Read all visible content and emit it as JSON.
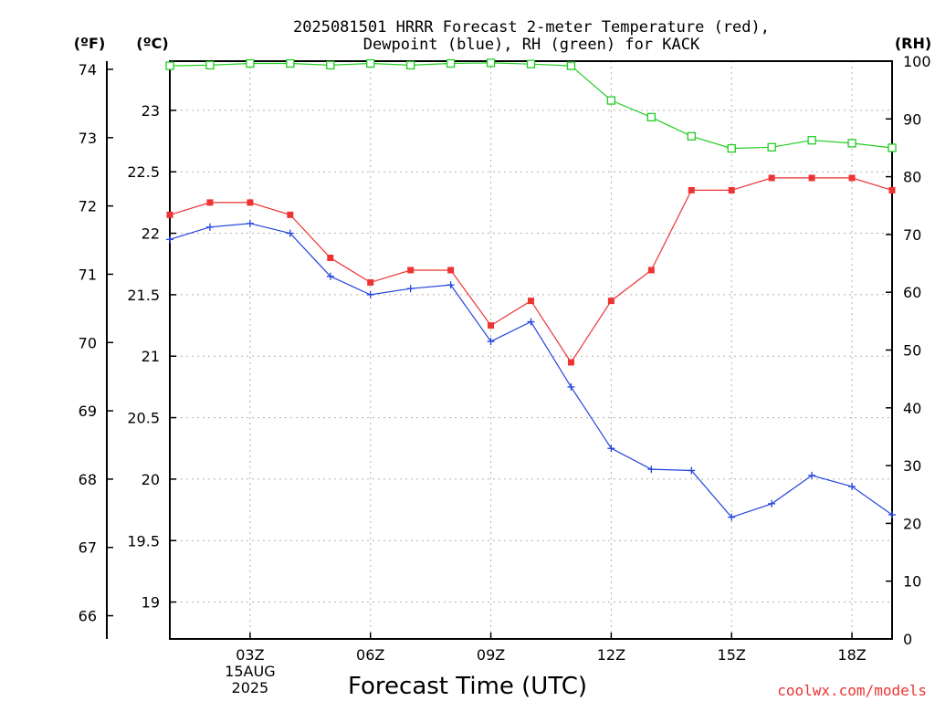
{
  "chart_data": {
    "type": "line",
    "title_lines": [
      "2025081501 HRRR Forecast 2-meter Temperature (red),",
      "Dewpoint (blue), RH (green) for KACK"
    ],
    "xlabel": "Forecast Time (UTC)",
    "unit_labels": {
      "fahrenheit": "(ºF)",
      "celsius": "(ºC)",
      "rh": "(RH)"
    },
    "credit": "coolwx.com/models",
    "x_hours": [
      1,
      2,
      3,
      4,
      5,
      6,
      7,
      8,
      9,
      10,
      11,
      12,
      13,
      14,
      15,
      16,
      17,
      18,
      19
    ],
    "x_range": [
      1,
      19
    ],
    "x_ticks": [
      {
        "hour": 3,
        "label": "03Z",
        "sub": [
          "15AUG",
          "2025"
        ]
      },
      {
        "hour": 6,
        "label": "06Z",
        "sub": []
      },
      {
        "hour": 9,
        "label": "09Z",
        "sub": []
      },
      {
        "hour": 12,
        "label": "12Z",
        "sub": []
      },
      {
        "hour": 15,
        "label": "15Z",
        "sub": []
      },
      {
        "hour": 18,
        "label": "18Z",
        "sub": []
      }
    ],
    "celsius_range": [
      18.7,
      23.4
    ],
    "fahrenheit_ticks": [
      "66",
      "67",
      "68",
      "69",
      "70",
      "71",
      "72",
      "73",
      "74"
    ],
    "celsius_ticks": [
      "19",
      "19.5",
      "20",
      "20.5",
      "21",
      "21.5",
      "22",
      "22.5",
      "23"
    ],
    "rh_range": [
      0,
      100
    ],
    "rh_ticks": [
      "0",
      "10",
      "20",
      "30",
      "40",
      "50",
      "60",
      "70",
      "80",
      "90",
      "100"
    ],
    "grid": true,
    "colors": {
      "temperature": "#ee3333",
      "dewpoint": "#2244dd",
      "rh": "#22cc22"
    },
    "series": [
      {
        "name": "Temperature",
        "axis": "celsius",
        "marker": "filled-square",
        "values": [
          22.15,
          22.25,
          22.25,
          22.15,
          21.8,
          21.6,
          21.7,
          21.7,
          21.25,
          21.45,
          20.95,
          21.45,
          21.7,
          22.35,
          22.35,
          22.45,
          22.45,
          22.45,
          22.35
        ]
      },
      {
        "name": "Dewpoint",
        "axis": "celsius",
        "marker": "plus",
        "values": [
          21.95,
          22.05,
          22.08,
          22.0,
          21.65,
          21.5,
          21.55,
          21.58,
          21.12,
          21.28,
          20.75,
          20.25,
          20.08,
          20.07,
          19.69,
          19.8,
          20.03,
          19.94,
          19.71
        ]
      },
      {
        "name": "RH",
        "axis": "rh",
        "marker": "open-square",
        "values": [
          99.2,
          99.3,
          99.6,
          99.6,
          99.3,
          99.6,
          99.3,
          99.6,
          99.7,
          99.5,
          99.2,
          93.2,
          90.3,
          87.0,
          84.9,
          85.1,
          86.3,
          85.8,
          85.0
        ]
      }
    ]
  }
}
